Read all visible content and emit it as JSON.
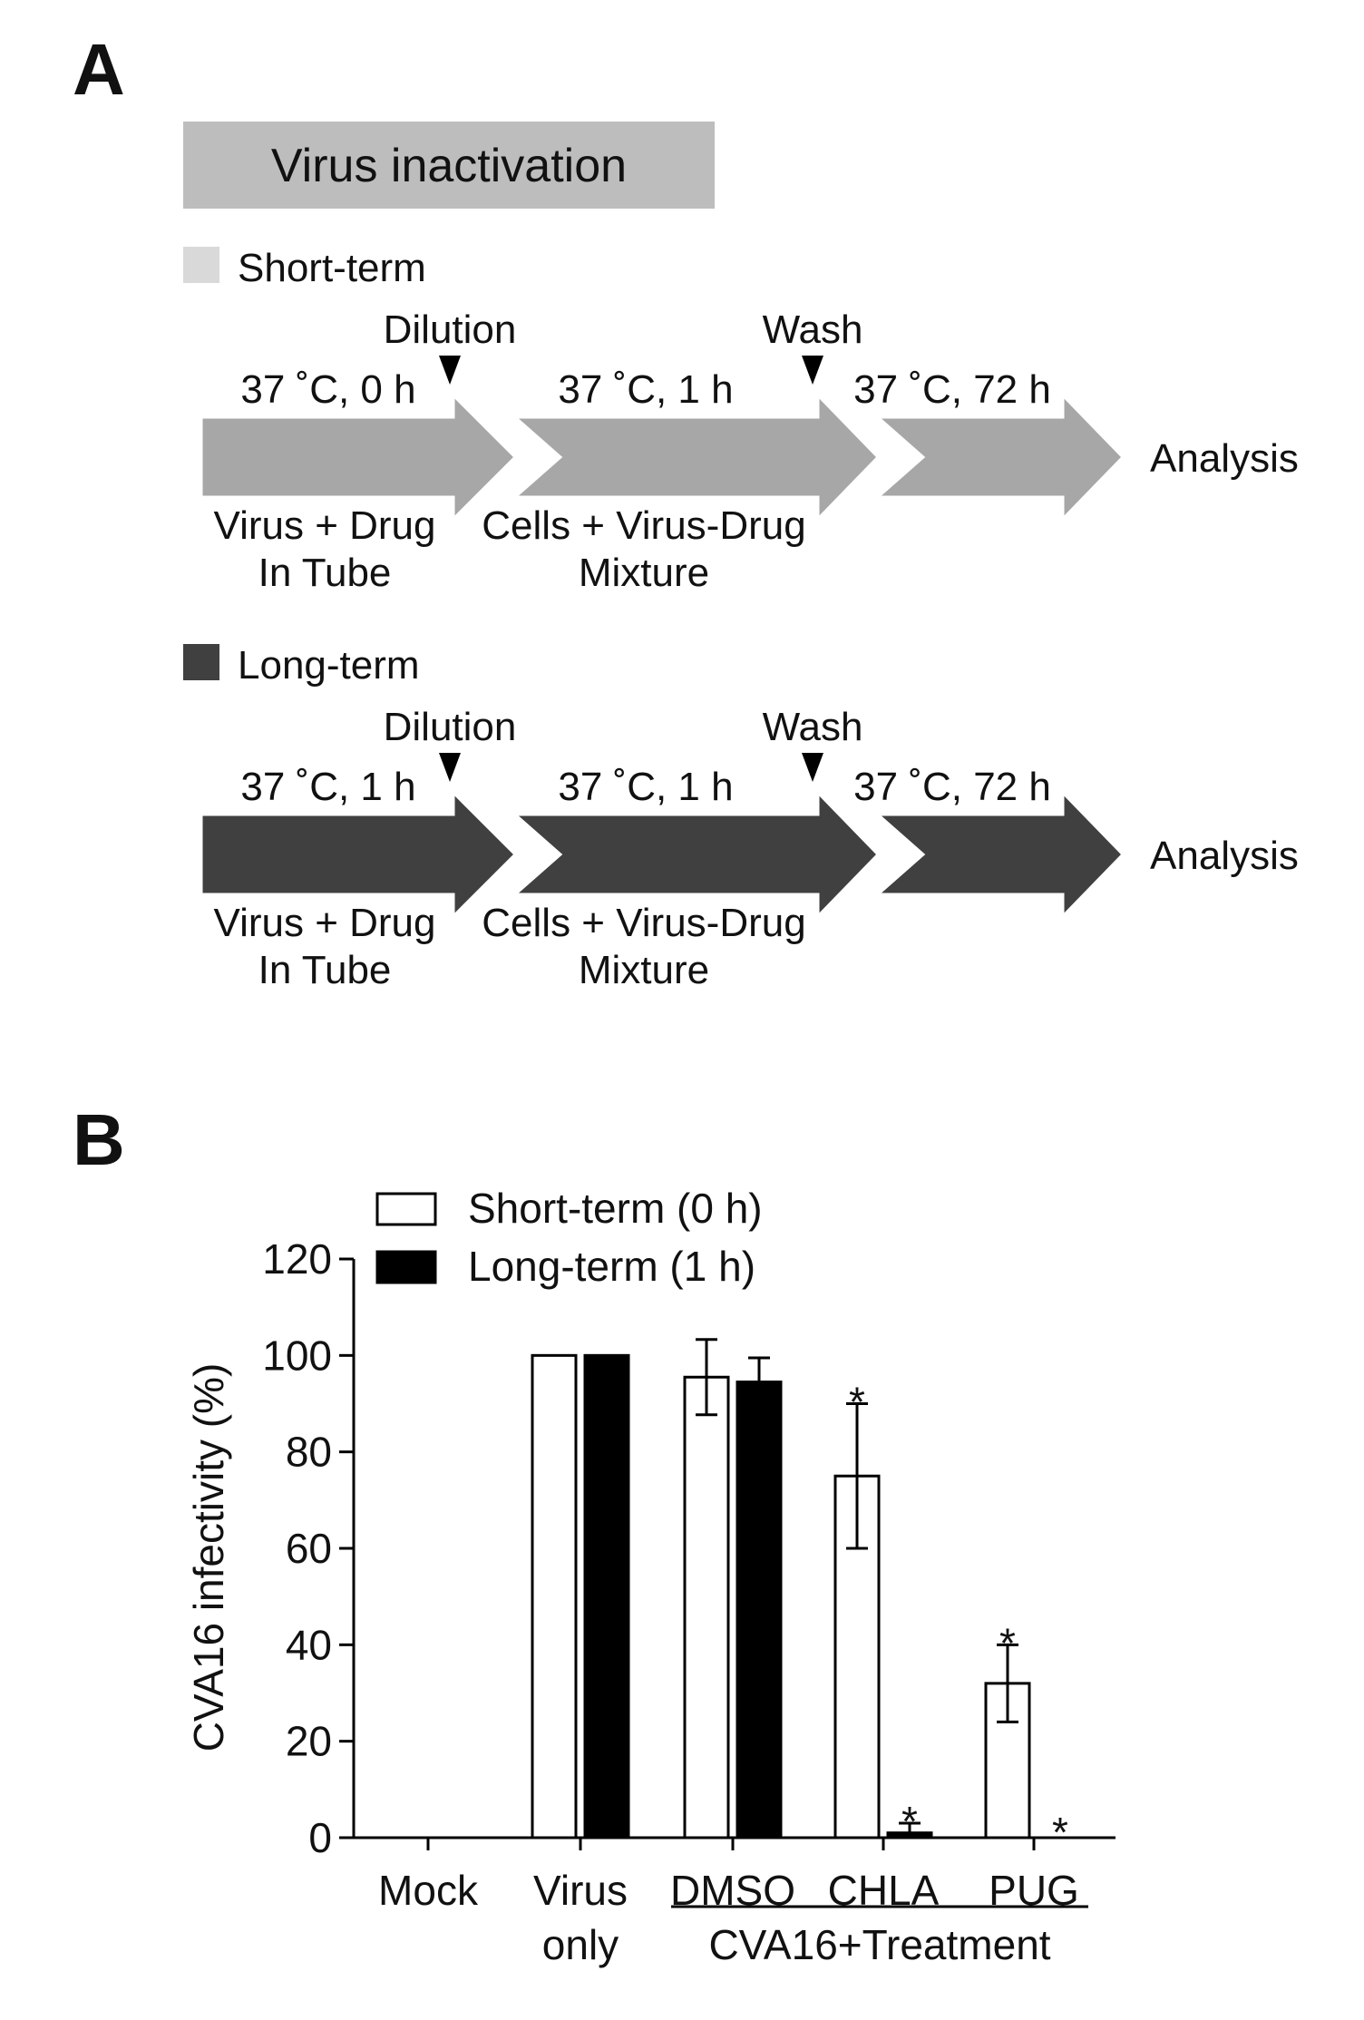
{
  "panel_a": {
    "letter": "A",
    "header": "Virus inactivation",
    "rows": [
      {
        "key": "short",
        "label": "Short-term",
        "color": "#a7a7a7",
        "swatch_color": "#d9d9d9",
        "marker1": "Dilution",
        "marker2": "Wash",
        "step1_top": "37 ˚C, 0 h",
        "step2_top": "37 ˚C, 1 h",
        "step3_top": "37 ˚C, 72 h",
        "step1_bottom": [
          "Virus + Drug",
          "In Tube"
        ],
        "step2_bottom": [
          "Cells + Virus-Drug",
          "Mixture"
        ],
        "end": "Analysis"
      },
      {
        "key": "long",
        "label": "Long-term",
        "color": "#404040",
        "swatch_color": "#404040",
        "marker1": "Dilution",
        "marker2": "Wash",
        "step1_top": "37 ˚C, 1 h",
        "step2_top": "37 ˚C, 1 h",
        "step3_top": "37 ˚C, 72 h",
        "step1_bottom": [
          "Virus + Drug",
          "In Tube"
        ],
        "step2_bottom": [
          "Cells + Virus-Drug",
          "Mixture"
        ],
        "end": "Analysis"
      }
    ]
  },
  "panel_b": {
    "letter": "B",
    "group_label": "CVA16+Treatment"
  },
  "chart_data": {
    "type": "bar",
    "categories": [
      "Mock",
      "Virus only",
      "DMSO",
      "CHLA",
      "PUG"
    ],
    "category_labels": [
      [
        "Mock"
      ],
      [
        "Virus",
        "only"
      ],
      [
        "DMSO"
      ],
      [
        "CHLA"
      ],
      [
        "PUG"
      ]
    ],
    "ylabel": "CVA16 infectivity (%)",
    "xlabel": "",
    "ylim": [
      0,
      120
    ],
    "yticks": [
      0,
      20,
      40,
      60,
      80,
      100,
      120
    ],
    "legend": "top-left",
    "series": [
      {
        "name": "Short-term (0 h)",
        "fill": "#ffffff",
        "values": [
          0,
          100,
          95.5,
          75,
          32
        ],
        "errors": [
          0,
          0,
          7.8,
          15,
          8
        ],
        "significant": [
          false,
          false,
          false,
          true,
          true
        ]
      },
      {
        "name": "Long-term (1 h)",
        "fill": "#000000",
        "values": [
          0,
          100,
          94.5,
          1,
          0
        ],
        "errors": [
          0,
          0,
          5,
          2,
          0
        ],
        "significant": [
          false,
          false,
          false,
          true,
          true
        ]
      }
    ],
    "significance_marker": "*"
  }
}
